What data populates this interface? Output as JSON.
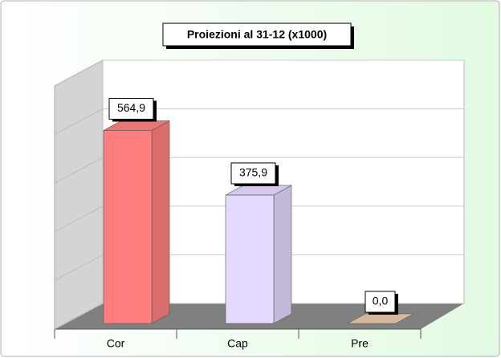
{
  "chart_data": {
    "type": "bar3d",
    "title": "Proiezioni al 31-12 (x1000)",
    "categories": [
      "Cor",
      "Cap",
      "Pre"
    ],
    "values": [
      564.9,
      375.9,
      0.0
    ],
    "value_labels": [
      "564,9",
      "375,9",
      "0,0"
    ],
    "colors": [
      "#ff7f7f",
      "#e6d9ff",
      "#e8c8a8"
    ],
    "ylim": [
      0,
      700
    ],
    "yticks": [
      0,
      140,
      280,
      420,
      560,
      700
    ],
    "grid": true
  }
}
